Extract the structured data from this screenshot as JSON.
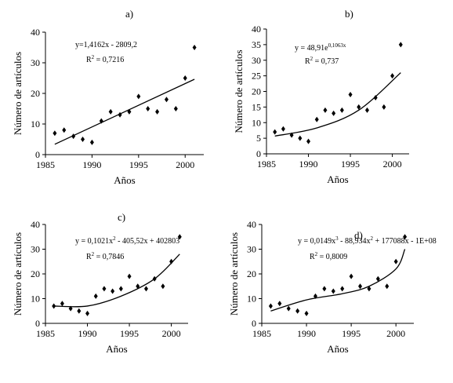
{
  "chart_data": [
    {
      "type": "scatter",
      "panel_label": "a)",
      "equation": "y=1,4162x - 2809,2",
      "r2": {
        "label": "R",
        "sup": "2",
        "value": " = 0,7216"
      },
      "xlabel": "Años",
      "ylabel": "Número de artículos",
      "xlim": [
        1985,
        2002
      ],
      "ylim": [
        0,
        40
      ],
      "xticks": [
        1985,
        1990,
        1995,
        2000
      ],
      "yticks": [
        0,
        10,
        20,
        30,
        40
      ],
      "x": [
        1986,
        1987,
        1988,
        1989,
        1990,
        1991,
        1992,
        1993,
        1994,
        1995,
        1996,
        1997,
        1998,
        1999,
        2000,
        2001
      ],
      "y": [
        7,
        8,
        6,
        5,
        4,
        11,
        14,
        13,
        14,
        19,
        15,
        14,
        18,
        15,
        25,
        35
      ],
      "trendline": {
        "type": "linear",
        "coefficients": [
          1.4162,
          -2809.2
        ]
      }
    },
    {
      "type": "scatter",
      "panel_label": "b)",
      "equation": "y = 48,91e",
      "equation_sup": "0,1063x",
      "r2": {
        "label": "R",
        "sup": "2",
        "value": " = 0,737"
      },
      "xlabel": "Años",
      "ylabel": "Número de artículos",
      "xlim": [
        1985,
        2002
      ],
      "ylim": [
        0,
        40
      ],
      "xticks": [
        1985,
        1990,
        1995,
        2000
      ],
      "yticks": [
        0,
        5,
        10,
        15,
        20,
        25,
        30,
        35,
        40
      ],
      "x": [
        1986,
        1987,
        1988,
        1989,
        1990,
        1991,
        1992,
        1993,
        1994,
        1995,
        1996,
        1997,
        1998,
        1999,
        2000,
        2001
      ],
      "y": [
        7,
        8,
        6,
        5,
        4,
        11,
        14,
        13,
        14,
        19,
        15,
        14,
        18,
        15,
        25,
        35
      ],
      "trendline": {
        "type": "exponential",
        "points_x": [
          1986,
          1991,
          1996,
          2001
        ],
        "points_y": [
          5.7,
          8.3,
          14,
          26
        ]
      }
    },
    {
      "type": "scatter",
      "panel_label": "c)",
      "equation": "y = 0,1021x",
      "equation_sup": "2",
      "equation_tail": " - 405,52x + 402803",
      "r2": {
        "label": "R",
        "sup": "2",
        "value": " = 0,7846"
      },
      "xlabel": "Años",
      "ylabel": "Número de artículos",
      "xlim": [
        1985,
        2002
      ],
      "ylim": [
        0,
        40
      ],
      "xticks": [
        1985,
        1990,
        1995,
        2000
      ],
      "yticks": [
        0,
        10,
        20,
        30,
        40
      ],
      "x": [
        1986,
        1987,
        1988,
        1989,
        1990,
        1991,
        1992,
        1993,
        1994,
        1995,
        1996,
        1997,
        1998,
        1999,
        2000,
        2001
      ],
      "y": [
        7,
        8,
        6,
        5,
        4,
        11,
        14,
        13,
        14,
        19,
        15,
        14,
        18,
        15,
        25,
        35
      ],
      "trendline": {
        "type": "polynomial-2",
        "points_x": [
          1986,
          1990,
          1994,
          1998,
          2001
        ],
        "points_y": [
          7,
          7,
          11,
          18,
          28
        ]
      }
    },
    {
      "type": "scatter",
      "panel_label": "d)",
      "equation": "y = 0,0149x",
      "equation_sup": "3",
      "equation_mid": " - 88,934x",
      "equation_sup2": "2",
      "equation_tail": " + 177088x - 1E+08",
      "r2": {
        "label": "R",
        "sup": "2",
        "value": " = 0,8009"
      },
      "xlabel": "Años",
      "ylabel": "Número de artículos",
      "xlim": [
        1985,
        2002
      ],
      "ylim": [
        0,
        40
      ],
      "xticks": [
        1985,
        1990,
        1995,
        2000
      ],
      "yticks": [
        0,
        10,
        20,
        30,
        40
      ],
      "x": [
        1986,
        1987,
        1988,
        1989,
        1990,
        1991,
        1992,
        1993,
        1994,
        1995,
        1996,
        1997,
        1998,
        1999,
        2000,
        2001
      ],
      "y": [
        7,
        8,
        6,
        5,
        4,
        11,
        14,
        13,
        14,
        19,
        15,
        14,
        18,
        15,
        25,
        35
      ],
      "trendline": {
        "type": "polynomial-3",
        "points_x": [
          1986,
          1990,
          1994,
          1997,
          2000,
          2001
        ],
        "points_y": [
          5,
          9.5,
          12,
          15,
          22,
          30
        ]
      }
    }
  ]
}
